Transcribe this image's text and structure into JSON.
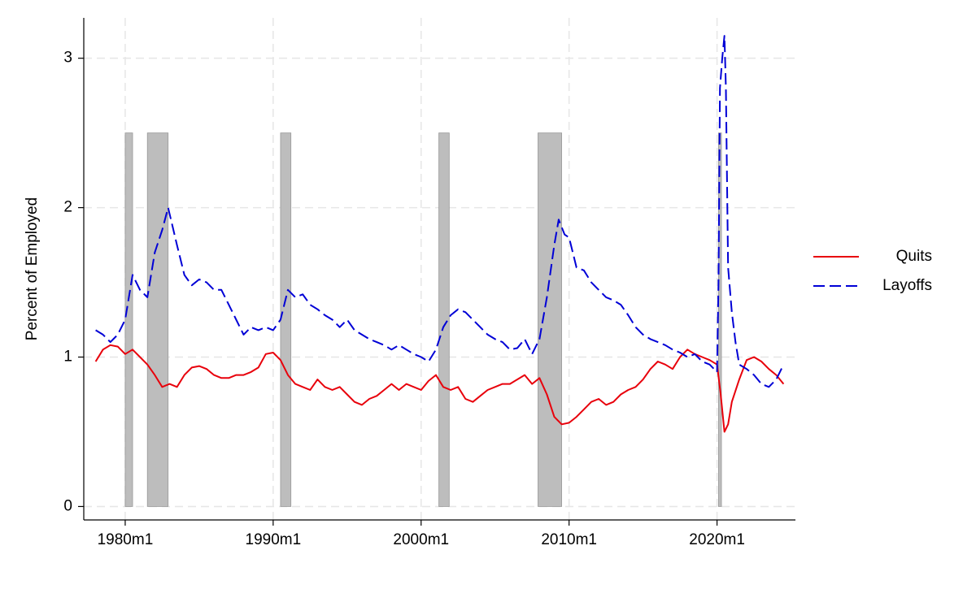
{
  "chart_data": {
    "type": "line",
    "y_label": "Percent of Employed",
    "xlim": [
      1977.2,
      2025.3
    ],
    "ylim": [
      -0.09,
      3.27
    ],
    "xticks": [
      {
        "value": 1980,
        "label": "1980m1"
      },
      {
        "value": 1990,
        "label": "1990m1"
      },
      {
        "value": 2000,
        "label": "2000m1"
      },
      {
        "value": 2010,
        "label": "2010m1"
      },
      {
        "value": 2020,
        "label": "2020m1"
      }
    ],
    "yticks": [
      0,
      1,
      2,
      3
    ],
    "grid": true,
    "legend": "right",
    "shade_color": "#bdbdbd",
    "shade_top": 2.5,
    "recessions": [
      [
        1980.0,
        1980.5
      ],
      [
        1981.5,
        1982.9
      ],
      [
        1990.5,
        1991.2
      ],
      [
        2001.2,
        2001.9
      ],
      [
        2007.9,
        2009.5
      ],
      [
        2020.1,
        2020.3
      ]
    ],
    "series": [
      {
        "name": "Quits",
        "color": "#e8000b",
        "dash": "none",
        "x": [
          1978.0,
          1978.5,
          1979.0,
          1979.5,
          1980.0,
          1980.5,
          1981.0,
          1981.5,
          1982.0,
          1982.5,
          1983.0,
          1983.5,
          1984.0,
          1984.5,
          1985.0,
          1985.5,
          1986.0,
          1986.5,
          1987.0,
          1987.5,
          1988.0,
          1988.5,
          1989.0,
          1989.5,
          1990.0,
          1990.5,
          1991.0,
          1991.5,
          1992.0,
          1992.5,
          1993.0,
          1993.5,
          1994.0,
          1994.5,
          1995.0,
          1995.5,
          1996.0,
          1996.5,
          1997.0,
          1997.5,
          1998.0,
          1998.5,
          1999.0,
          1999.5,
          2000.0,
          2000.5,
          2001.0,
          2001.5,
          2002.0,
          2002.5,
          2003.0,
          2003.5,
          2004.0,
          2004.5,
          2005.0,
          2005.5,
          2006.0,
          2006.5,
          2007.0,
          2007.5,
          2008.0,
          2008.5,
          2009.0,
          2009.5,
          2010.0,
          2010.5,
          2011.0,
          2011.5,
          2012.0,
          2012.5,
          2013.0,
          2013.5,
          2014.0,
          2014.5,
          2015.0,
          2015.5,
          2016.0,
          2016.5,
          2017.0,
          2017.5,
          2018.0,
          2018.5,
          2019.0,
          2019.5,
          2020.0,
          2020.25,
          2020.5,
          2020.75,
          2021.0,
          2021.5,
          2022.0,
          2022.5,
          2023.0,
          2023.5,
          2024.0,
          2024.5
        ],
        "values": [
          0.97,
          1.05,
          1.08,
          1.07,
          1.02,
          1.05,
          1.0,
          0.95,
          0.88,
          0.8,
          0.82,
          0.8,
          0.88,
          0.93,
          0.94,
          0.92,
          0.88,
          0.86,
          0.86,
          0.88,
          0.88,
          0.9,
          0.93,
          1.02,
          1.03,
          0.98,
          0.88,
          0.82,
          0.8,
          0.78,
          0.85,
          0.8,
          0.78,
          0.8,
          0.75,
          0.7,
          0.68,
          0.72,
          0.74,
          0.78,
          0.82,
          0.78,
          0.82,
          0.8,
          0.78,
          0.84,
          0.88,
          0.8,
          0.78,
          0.8,
          0.72,
          0.7,
          0.74,
          0.78,
          0.8,
          0.82,
          0.82,
          0.85,
          0.88,
          0.82,
          0.86,
          0.75,
          0.6,
          0.55,
          0.56,
          0.6,
          0.65,
          0.7,
          0.72,
          0.68,
          0.7,
          0.75,
          0.78,
          0.8,
          0.85,
          0.92,
          0.97,
          0.95,
          0.92,
          1.0,
          1.05,
          1.02,
          1.0,
          0.98,
          0.95,
          0.75,
          0.5,
          0.55,
          0.7,
          0.85,
          0.98,
          1.0,
          0.97,
          0.92,
          0.88,
          0.82
        ]
      },
      {
        "name": "Layoffs",
        "color": "#0000d6",
        "dash": "14 6",
        "x": [
          1978.0,
          1978.5,
          1979.0,
          1979.5,
          1980.0,
          1980.5,
          1981.0,
          1981.5,
          1982.0,
          1982.5,
          1982.9,
          1983.5,
          1984.0,
          1984.5,
          1985.0,
          1985.5,
          1986.0,
          1986.5,
          1987.0,
          1987.5,
          1988.0,
          1988.5,
          1989.0,
          1989.5,
          1990.0,
          1990.5,
          1991.0,
          1991.5,
          1992.0,
          1992.5,
          1993.0,
          1993.5,
          1994.0,
          1994.5,
          1995.0,
          1995.5,
          1996.0,
          1996.5,
          1997.0,
          1997.5,
          1998.0,
          1998.5,
          1999.0,
          1999.5,
          2000.0,
          2000.5,
          2001.0,
          2001.5,
          2002.0,
          2002.5,
          2003.0,
          2003.5,
          2004.0,
          2004.5,
          2005.0,
          2005.5,
          2006.0,
          2006.5,
          2007.0,
          2007.5,
          2008.0,
          2008.5,
          2009.0,
          2009.3,
          2009.7,
          2010.0,
          2010.5,
          2011.0,
          2011.5,
          2012.0,
          2012.5,
          2013.0,
          2013.5,
          2014.0,
          2014.5,
          2015.0,
          2015.5,
          2016.0,
          2016.5,
          2017.0,
          2017.5,
          2018.0,
          2018.5,
          2019.0,
          2019.5,
          2020.0,
          2020.1,
          2020.2,
          2020.35,
          2020.5,
          2020.6,
          2020.75,
          2021.0,
          2021.25,
          2021.5,
          2022.0,
          2022.5,
          2023.0,
          2023.5,
          2024.0,
          2024.5
        ],
        "values": [
          1.18,
          1.15,
          1.1,
          1.15,
          1.25,
          1.55,
          1.45,
          1.4,
          1.7,
          1.85,
          2.0,
          1.75,
          1.55,
          1.48,
          1.52,
          1.5,
          1.45,
          1.45,
          1.35,
          1.25,
          1.15,
          1.2,
          1.18,
          1.2,
          1.18,
          1.25,
          1.45,
          1.4,
          1.42,
          1.35,
          1.32,
          1.28,
          1.25,
          1.2,
          1.25,
          1.18,
          1.15,
          1.12,
          1.1,
          1.08,
          1.05,
          1.08,
          1.05,
          1.02,
          1.0,
          0.97,
          1.05,
          1.2,
          1.28,
          1.32,
          1.3,
          1.25,
          1.2,
          1.15,
          1.12,
          1.1,
          1.05,
          1.06,
          1.12,
          1.02,
          1.12,
          1.4,
          1.75,
          1.92,
          1.82,
          1.8,
          1.6,
          1.58,
          1.5,
          1.45,
          1.4,
          1.38,
          1.35,
          1.28,
          1.2,
          1.15,
          1.12,
          1.1,
          1.08,
          1.05,
          1.03,
          1.0,
          1.02,
          0.97,
          0.95,
          0.9,
          1.5,
          2.8,
          3.0,
          3.15,
          2.8,
          1.6,
          1.3,
          1.1,
          0.95,
          0.92,
          0.88,
          0.82,
          0.8,
          0.85,
          0.95
        ]
      }
    ]
  }
}
